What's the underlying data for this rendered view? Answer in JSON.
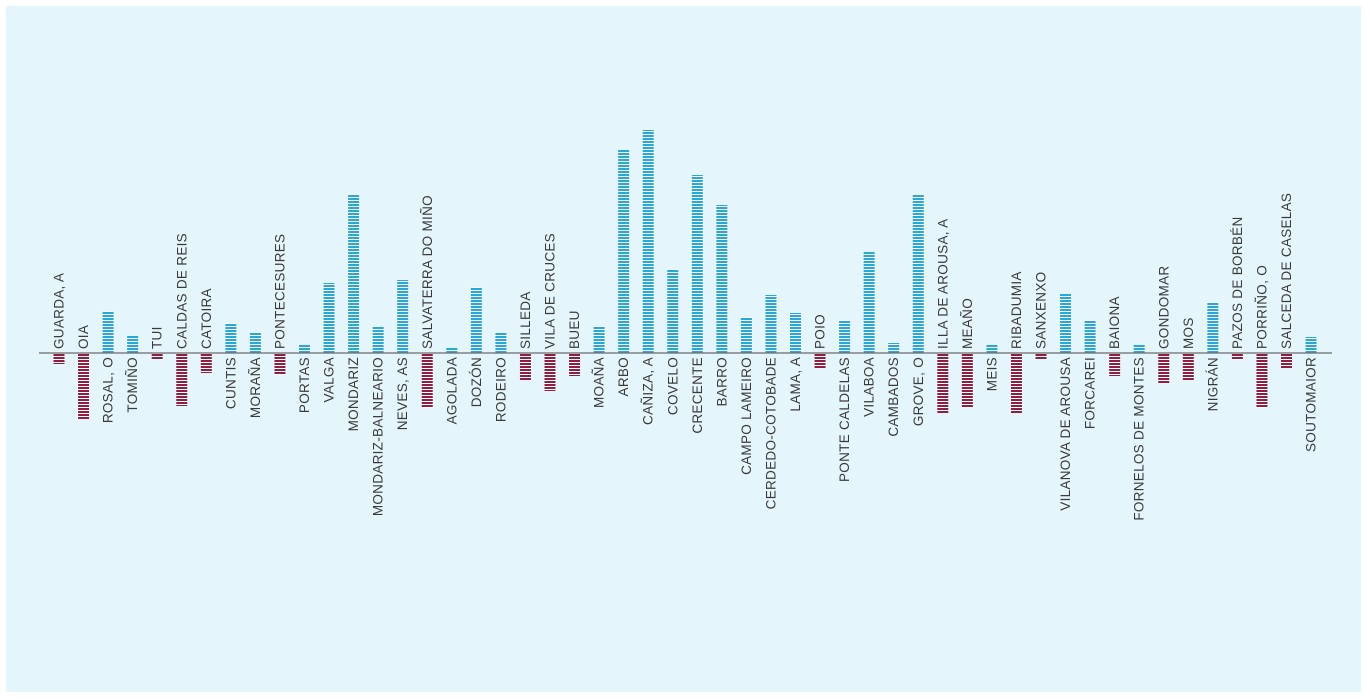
{
  "colors": {
    "background": "#e5f5fc",
    "positive": "#27a9d6",
    "negative": "#8e1f40",
    "stripe": "#ffffff",
    "axis": "#6b6b6b",
    "label": "#3a3a3a"
  },
  "chart_data": {
    "type": "bar",
    "title": "",
    "xlabel": "",
    "ylabel": "",
    "grid": false,
    "categories": [
      "GUARDA, A",
      "OIA",
      "ROSAL, O",
      "TOMIÑO",
      "TUI",
      "CALDAS DE REIS",
      "CATOIRA",
      "CUNTIS",
      "MORAÑA",
      "PONTECESURES",
      "PORTAS",
      "VALGA",
      "MONDARIZ",
      "MONDARIZ-BALNEARIO",
      "NEVES, AS",
      "SALVATERRA DO MIÑO",
      "AGOLADA",
      "DOZÓN",
      "RODEIRO",
      "SILLEDA",
      "VILA DE CRUCES",
      "BUEU",
      "MOAÑA",
      "ARBO",
      "CAÑIZA, A",
      "COVELO",
      "CRECENTE",
      "BARRO",
      "CAMPO LAMEIRO",
      "CERDEDO-COTOBADE",
      "LAMA, A",
      "POIO",
      "PONTE CALDELAS",
      "VILABOA",
      "CAMBADOS",
      "GROVE, O",
      "ILLA DE AROUSA, A",
      "MEAÑO",
      "MEIS",
      "RIBADUMIA",
      "SANXENXO",
      "VILANOVA DE AROUSA",
      "FORCAREI",
      "BAIONA",
      "FORNELOS DE MONTES",
      "GONDOMAR",
      "MOS",
      "NIGRÁN",
      "PAZOS DE BORBÉN",
      "PORRIÑO, O",
      "SALCEDA DE CASELAS",
      "SOUTOMAIOR"
    ],
    "values": [
      -11,
      -66,
      42,
      17,
      -7,
      -53,
      -20,
      30,
      20,
      -22,
      8,
      70,
      159,
      26,
      73,
      -55,
      5,
      66,
      20,
      -27,
      -38,
      -23,
      27,
      203,
      223,
      84,
      178,
      148,
      36,
      58,
      40,
      -15,
      33,
      101,
      10,
      159,
      -60,
      -54,
      8,
      -60,
      -7,
      59,
      33,
      -23,
      8,
      -30,
      -27,
      51,
      -7,
      -55,
      -15,
      16
    ],
    "ylim": [
      -75,
      230
    ]
  }
}
